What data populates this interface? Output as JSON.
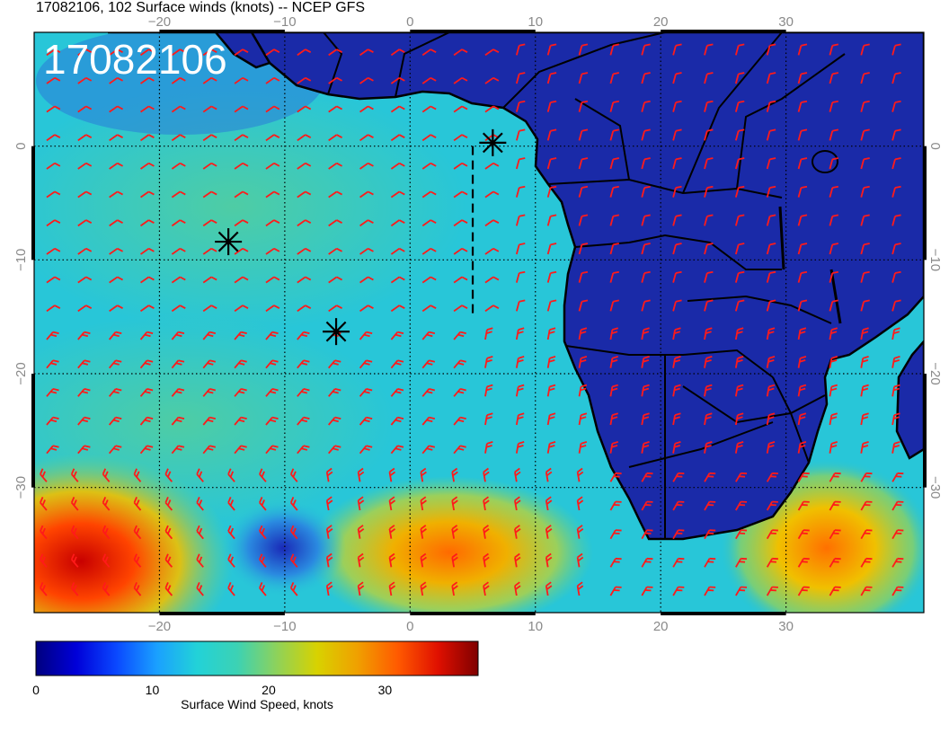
{
  "title": "17082106, 102 Surface winds (knots) -- NCEP GFS",
  "timestamp_stamp": "17082106",
  "map": {
    "lon_range": [
      -30,
      41
    ],
    "lat_range": [
      -41,
      10
    ],
    "grid_lons": [
      -20,
      -10,
      0,
      10,
      20,
      30
    ],
    "grid_lats": [
      0,
      -10,
      -20,
      -30
    ],
    "lon_tick_labels": [
      "−20",
      "−10",
      "0",
      "10",
      "20",
      "30"
    ],
    "lat_tick_labels": [
      "0",
      "−10",
      "−20",
      "−30"
    ],
    "gridlines": "dotted",
    "land_color": "#1a2aa8",
    "barb_color": "#ff1a1a",
    "markers": [
      {
        "name": "marker-north",
        "lon": 6.6,
        "lat": 0.3
      },
      {
        "name": "marker-west",
        "lon": -14.5,
        "lat": -8.4
      },
      {
        "name": "marker-center",
        "lon": -5.9,
        "lat": -16.3
      }
    ],
    "track": {
      "lon": 5.0,
      "lat_from": 0.0,
      "lat_to": -15.0
    }
  },
  "colorbar": {
    "label": "Surface Wind Speed, knots",
    "min": 0,
    "max": 38,
    "ticks": [
      0,
      10,
      20,
      30
    ],
    "tick_labels": [
      "0",
      "10",
      "20",
      "30"
    ],
    "colors": [
      "#00007f",
      "#0000d8",
      "#0a48ff",
      "#1aa0ff",
      "#22d2d8",
      "#3cd2b4",
      "#8ed25a",
      "#d8d200",
      "#f0a000",
      "#ff5a00",
      "#e01000",
      "#7f0000"
    ]
  }
}
